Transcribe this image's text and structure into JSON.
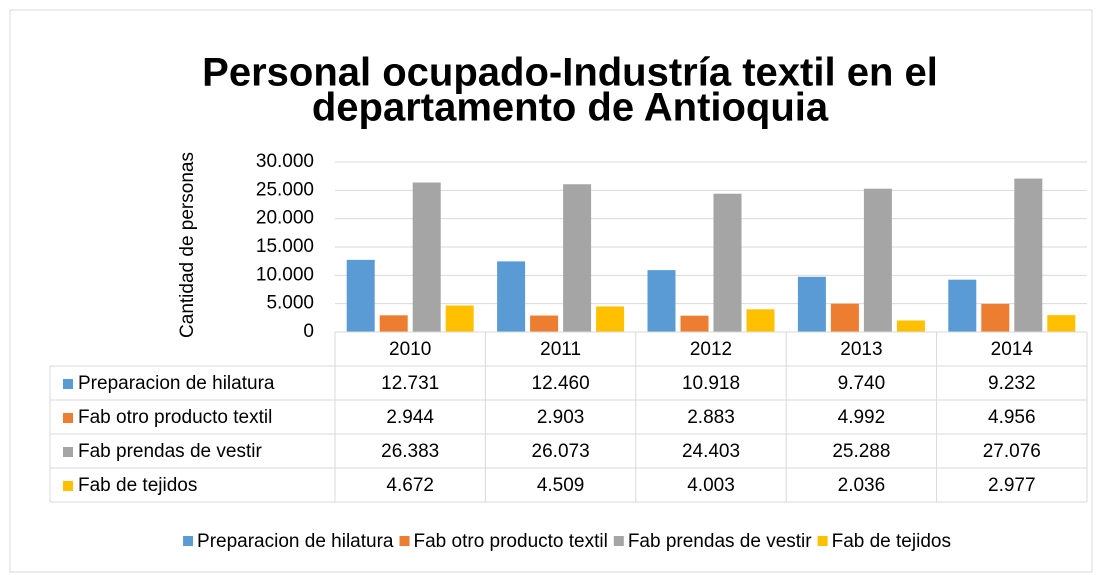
{
  "chart_data": {
    "type": "bar",
    "title": "Personal ocupado-Industría textil en el departamento de Antioquia",
    "y_label": "Cantidad de personas",
    "categories": [
      "2010",
      "2011",
      "2012",
      "2013",
      "2014"
    ],
    "series": [
      {
        "name": "Preparacion de hilatura",
        "color": "#5b9bd5",
        "values": [
          12731,
          12460,
          10918,
          9740,
          9232
        ],
        "value_labels": [
          "12.731",
          "12.460",
          "10.918",
          "9.740",
          "9.232"
        ]
      },
      {
        "name": "Fab otro producto textil",
        "color": "#ed7d31",
        "values": [
          2944,
          2903,
          2883,
          4992,
          4956
        ],
        "value_labels": [
          "2.944",
          "2.903",
          "2.883",
          "4.992",
          "4.956"
        ]
      },
      {
        "name": "Fab prendas de vestir",
        "color": "#a5a5a5",
        "values": [
          26383,
          26073,
          24403,
          25288,
          27076
        ],
        "value_labels": [
          "26.383",
          "26.073",
          "24.403",
          "25.288",
          "27.076"
        ]
      },
      {
        "name": "Fab de tejidos",
        "color": "#ffc000",
        "values": [
          4672,
          4509,
          4003,
          2036,
          2977
        ],
        "value_labels": [
          "4.672",
          "4.509",
          "4.003",
          "2.036",
          "2.977"
        ]
      }
    ],
    "ylim": [
      0,
      30000
    ],
    "yticks": [
      0,
      {
        "value": 5000,
        "label": "5.000"
      },
      {
        "value": 10000,
        "label": "10.000"
      },
      {
        "value": 15000,
        "label": "15.000"
      },
      {
        "value": 20000,
        "label": "20.000"
      },
      {
        "value": 25000,
        "label": "25.000"
      },
      {
        "value": 30000,
        "label": "30.000"
      }
    ],
    "grid": true,
    "legend": "bottom"
  }
}
